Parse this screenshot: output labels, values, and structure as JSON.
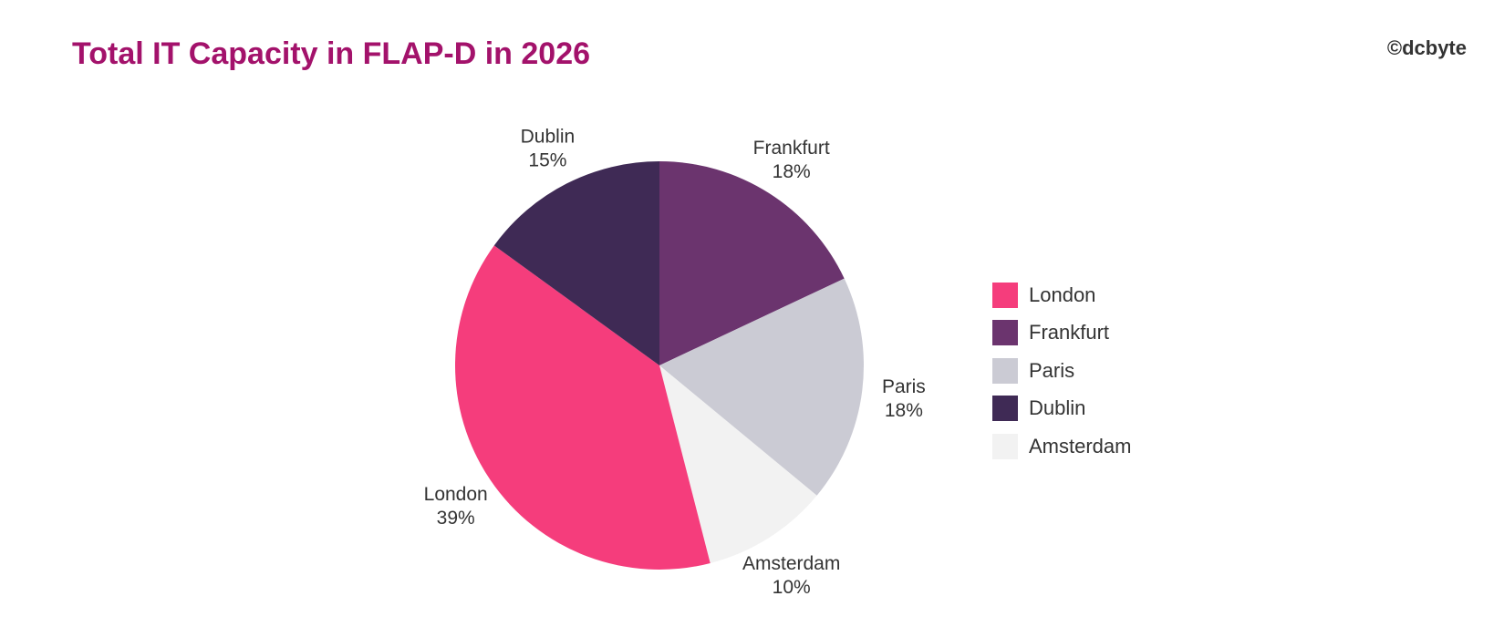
{
  "header": {
    "title": "Total IT Capacity in FLAP-D in 2026",
    "credit": "©dcbyte"
  },
  "chart_data": {
    "type": "pie",
    "title": "Total IT Capacity in FLAP-D in 2026",
    "slices": [
      {
        "label": "Frankfurt",
        "value": 18,
        "display": "18%",
        "color": "#6b346e"
      },
      {
        "label": "Paris",
        "value": 18,
        "display": "18%",
        "color": "#cbcbd4"
      },
      {
        "label": "Amsterdam",
        "value": 10,
        "display": "10%",
        "color": "#f2f2f2"
      },
      {
        "label": "London",
        "value": 39,
        "display": "39%",
        "color": "#f53d7c"
      },
      {
        "label": "Dublin",
        "value": 15,
        "display": "15%",
        "color": "#3f2a55"
      }
    ],
    "legend": {
      "placement": "right",
      "items": [
        {
          "label": "London",
          "color": "#f53d7c"
        },
        {
          "label": "Frankfurt",
          "color": "#6b346e"
        },
        {
          "label": "Paris",
          "color": "#cbcbd4"
        },
        {
          "label": "Dublin",
          "color": "#3f2a55"
        },
        {
          "label": "Amsterdam",
          "color": "#f2f2f2"
        }
      ]
    }
  }
}
